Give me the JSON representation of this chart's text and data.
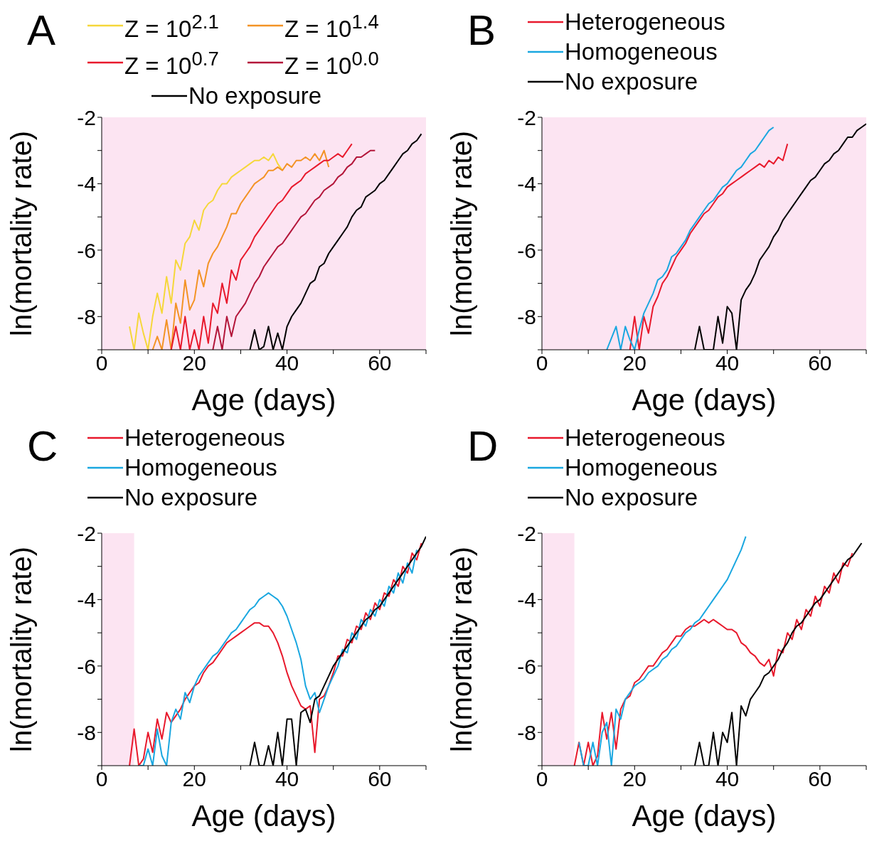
{
  "chart_data": [
    {
      "type": "line",
      "title": "A",
      "xlabel": "Age (days)",
      "ylabel": "ln(mortality rate)",
      "xlim": [
        0,
        70
      ],
      "ylim": [
        -9,
        -2
      ],
      "xticks": [
        0,
        {
          "value": 10,
          "label": null
        },
        20,
        {
          "value": 30,
          "label": null
        },
        40,
        {
          "value": 50,
          "label": null
        },
        60,
        {
          "value": 70,
          "label": null
        }
      ],
      "yticks": [
        {
          "value": -9,
          "label": null
        },
        -8,
        {
          "value": -7,
          "label": null
        },
        -6,
        {
          "value": -5,
          "label": null
        },
        -4,
        {
          "value": -3,
          "label": null
        },
        -2
      ],
      "bands": [
        {
          "axis": "x",
          "from": 0,
          "to": 70,
          "color": "#fce4f2"
        }
      ],
      "legend": "top",
      "line_style": "solid",
      "series": [
        {
          "name": "Z = 10$^{2.1}$",
          "color": "#f5d73a",
          "x": [
            6,
            7,
            8,
            9,
            10,
            11,
            12,
            13,
            14,
            15,
            16,
            17,
            18,
            19,
            20,
            21,
            22,
            23,
            24,
            25,
            26,
            27,
            28,
            29,
            30,
            31,
            32,
            33,
            34,
            35,
            36,
            37,
            38,
            39
          ],
          "values": [
            -8.3,
            -9,
            -7.9,
            -8.5,
            -9,
            -8.0,
            -7.3,
            -7.9,
            -6.8,
            -7.6,
            -6.3,
            -6.6,
            -5.8,
            -5.6,
            -5.1,
            -5.4,
            -4.8,
            -4.6,
            -4.5,
            -4.2,
            -4.0,
            -4.0,
            -3.8,
            -3.7,
            -3.6,
            -3.5,
            -3.4,
            -3.3,
            -3.3,
            -3.2,
            -3.3,
            -3.1,
            -3.4,
            -3.6
          ]
        },
        {
          "name": "Z = 10$^{1.4}$",
          "color": "#f39325",
          "x": [
            11,
            12,
            13,
            14,
            15,
            16,
            17,
            18,
            19,
            20,
            21,
            22,
            23,
            24,
            25,
            26,
            27,
            28,
            29,
            30,
            31,
            32,
            33,
            34,
            35,
            36,
            37,
            38,
            39,
            40,
            41,
            42,
            43,
            44,
            45,
            46,
            47,
            48,
            49
          ],
          "values": [
            -9,
            -8.6,
            -9,
            -8.1,
            -9,
            -7.6,
            -8.2,
            -6.9,
            -7.8,
            -7.5,
            -6.6,
            -7.1,
            -6.4,
            -6.1,
            -5.9,
            -5.6,
            -5.3,
            -4.9,
            -4.9,
            -4.6,
            -4.4,
            -4.2,
            -4.0,
            -3.9,
            -3.8,
            -3.6,
            -3.6,
            -3.5,
            -3.6,
            -3.4,
            -3.5,
            -3.3,
            -3.3,
            -3.2,
            -3.3,
            -3.1,
            -3.3,
            -3.0,
            -3.5
          ]
        },
        {
          "name": "Z = 10$^{0.7}$",
          "color": "#e8192c",
          "x": [
            15,
            16,
            17,
            18,
            19,
            20,
            21,
            22,
            23,
            24,
            25,
            26,
            27,
            28,
            29,
            30,
            31,
            32,
            33,
            34,
            35,
            36,
            37,
            38,
            39,
            40,
            41,
            42,
            43,
            44,
            45,
            46,
            47,
            48,
            49,
            50,
            51,
            52,
            53,
            54
          ],
          "values": [
            -9,
            -8.3,
            -9,
            -8.0,
            -9,
            -8.4,
            -9,
            -8.0,
            -8.8,
            -7.6,
            -7.9,
            -7.0,
            -7.6,
            -6.6,
            -6.9,
            -6.3,
            -6.1,
            -5.9,
            -5.6,
            -5.4,
            -5.2,
            -5.0,
            -4.8,
            -4.6,
            -4.5,
            -4.3,
            -4.1,
            -4.0,
            -3.9,
            -3.7,
            -3.6,
            -3.5,
            -3.4,
            -3.3,
            -3.3,
            -3.2,
            -3.1,
            -3.2,
            -3.0,
            -2.8
          ]
        },
        {
          "name": "Z = 10$^{0.0}$",
          "color": "#b3163a",
          "x": [
            24,
            25,
            26,
            27,
            28,
            29,
            30,
            31,
            32,
            33,
            34,
            35,
            36,
            37,
            38,
            39,
            40,
            41,
            42,
            43,
            44,
            45,
            46,
            47,
            48,
            49,
            50,
            51,
            52,
            53,
            54,
            55,
            56,
            57,
            58,
            59
          ],
          "values": [
            -9,
            -8.3,
            -9,
            -8.0,
            -8.6,
            -8.0,
            -7.8,
            -7.6,
            -7.3,
            -7.0,
            -6.8,
            -6.5,
            -6.3,
            -6.1,
            -5.9,
            -5.8,
            -5.6,
            -5.4,
            -5.2,
            -5.0,
            -4.9,
            -4.7,
            -4.5,
            -4.4,
            -4.2,
            -4.1,
            -4.0,
            -3.8,
            -3.7,
            -3.5,
            -3.4,
            -3.2,
            -3.2,
            -3.1,
            -3.0,
            -3.0
          ]
        },
        {
          "name": "No exposure",
          "color": "#000000",
          "x": [
            32,
            33,
            34,
            35,
            36,
            37,
            38,
            39,
            40,
            41,
            42,
            43,
            44,
            45,
            46,
            47,
            48,
            49,
            50,
            51,
            52,
            53,
            54,
            55,
            56,
            57,
            58,
            59,
            60,
            61,
            62,
            63,
            64,
            65,
            66,
            67,
            68,
            69
          ],
          "values": [
            -9,
            -8.4,
            -9,
            -8.9,
            -8.3,
            -9,
            -8.5,
            -9,
            -8.3,
            -8.0,
            -7.8,
            -7.6,
            -7.3,
            -7.0,
            -6.9,
            -6.5,
            -6.4,
            -6.1,
            -5.9,
            -5.7,
            -5.5,
            -5.3,
            -5.0,
            -4.8,
            -4.7,
            -4.4,
            -4.3,
            -4.2,
            -4.0,
            -3.9,
            -3.7,
            -3.5,
            -3.3,
            -3.1,
            -3.0,
            -2.8,
            -2.7,
            -2.5
          ]
        }
      ]
    },
    {
      "type": "line",
      "title": "B",
      "xlabel": "Age (days)",
      "ylabel": "ln(mortality rate)",
      "xlim": [
        0,
        70
      ],
      "ylim": [
        -9,
        -2
      ],
      "xticks": [
        0,
        {
          "value": 10,
          "label": null
        },
        20,
        {
          "value": 30,
          "label": null
        },
        40,
        {
          "value": 50,
          "label": null
        },
        60,
        {
          "value": 70,
          "label": null
        }
      ],
      "yticks": [
        {
          "value": -9,
          "label": null
        },
        -8,
        {
          "value": -7,
          "label": null
        },
        -6,
        {
          "value": -5,
          "label": null
        },
        -4,
        {
          "value": -3,
          "label": null
        },
        -2
      ],
      "bands": [
        {
          "axis": "x",
          "from": 0,
          "to": 70,
          "color": "#fce4f2"
        }
      ],
      "legend": "top",
      "line_style": "solid",
      "series": [
        {
          "name": "Heterogeneous",
          "color": "#e8192c",
          "x": [
            19,
            20,
            21,
            22,
            23,
            24,
            25,
            26,
            27,
            28,
            29,
            30,
            31,
            32,
            33,
            34,
            35,
            36,
            37,
            38,
            39,
            40,
            41,
            42,
            43,
            44,
            45,
            46,
            47,
            48,
            49,
            50,
            51,
            52,
            53
          ],
          "values": [
            -9,
            -8.0,
            -9,
            -8.0,
            -8.5,
            -7.7,
            -7.4,
            -7.0,
            -6.8,
            -6.5,
            -6.2,
            -6.0,
            -5.8,
            -5.5,
            -5.3,
            -5.1,
            -4.9,
            -4.8,
            -4.6,
            -4.4,
            -4.3,
            -4.1,
            -4.0,
            -3.9,
            -3.8,
            -3.7,
            -3.6,
            -3.5,
            -3.4,
            -3.5,
            -3.3,
            -3.4,
            -3.2,
            -3.3,
            -2.8
          ]
        },
        {
          "name": "Homogeneous",
          "color": "#1aa7e0",
          "x": [
            14,
            16,
            17,
            18,
            19,
            20,
            21,
            22,
            23,
            24,
            25,
            26,
            27,
            28,
            29,
            30,
            31,
            32,
            33,
            34,
            35,
            36,
            37,
            38,
            39,
            40,
            41,
            42,
            43,
            44,
            45,
            46,
            47,
            48,
            49,
            50
          ],
          "values": [
            -9,
            -8.3,
            -9,
            -8.3,
            -8.7,
            -9,
            -8.4,
            -7.9,
            -7.6,
            -7.3,
            -6.9,
            -6.8,
            -6.6,
            -6.2,
            -6.1,
            -5.9,
            -5.7,
            -5.4,
            -5.2,
            -5.0,
            -4.8,
            -4.6,
            -4.5,
            -4.3,
            -4.1,
            -4.0,
            -3.8,
            -3.6,
            -3.5,
            -3.3,
            -3.1,
            -3.0,
            -2.8,
            -2.6,
            -2.4,
            -2.3
          ]
        },
        {
          "name": "No exposure",
          "color": "#000000",
          "x": [
            33,
            34,
            35,
            37,
            38,
            39,
            40,
            41,
            42,
            43,
            44,
            45,
            46,
            47,
            48,
            49,
            50,
            51,
            52,
            53,
            54,
            55,
            56,
            57,
            58,
            59,
            60,
            61,
            62,
            63,
            64,
            65,
            66,
            67,
            68,
            69,
            70
          ],
          "values": [
            -9,
            -8.3,
            -9,
            -9,
            -8.0,
            -8.8,
            -7.7,
            -7.9,
            -9,
            -7.5,
            -7.2,
            -7.0,
            -6.7,
            -6.3,
            -6.1,
            -5.9,
            -5.6,
            -5.4,
            -5.1,
            -4.9,
            -4.7,
            -4.5,
            -4.3,
            -4.1,
            -3.9,
            -3.8,
            -3.6,
            -3.4,
            -3.3,
            -3.1,
            -3.0,
            -2.8,
            -2.6,
            -2.6,
            -2.4,
            -2.3,
            -2.2
          ]
        }
      ]
    },
    {
      "type": "line",
      "title": "C",
      "xlabel": "Age (days)",
      "ylabel": "ln(mortality rate)",
      "xlim": [
        0,
        70
      ],
      "ylim": [
        -9,
        -2
      ],
      "xticks": [
        0,
        {
          "value": 10,
          "label": null
        },
        20,
        {
          "value": 30,
          "label": null
        },
        40,
        {
          "value": 50,
          "label": null
        },
        60,
        {
          "value": 70,
          "label": null
        }
      ],
      "yticks": [
        {
          "value": -9,
          "label": null
        },
        -8,
        {
          "value": -7,
          "label": null
        },
        -6,
        {
          "value": -5,
          "label": null
        },
        -4,
        {
          "value": -3,
          "label": null
        },
        -2
      ],
      "bands": [
        {
          "axis": "x",
          "from": 0,
          "to": 7,
          "color": "#fce4f2"
        }
      ],
      "legend": "top",
      "line_style": "solid",
      "series": [
        {
          "name": "Heterogeneous",
          "color": "#e8192c",
          "x": [
            6,
            7,
            8,
            9,
            10,
            11,
            12,
            13,
            14,
            15,
            16,
            17,
            18,
            19,
            20,
            21,
            22,
            23,
            24,
            25,
            26,
            27,
            28,
            29,
            30,
            31,
            32,
            33,
            34,
            35,
            36,
            37,
            38,
            39,
            40,
            41,
            42,
            43,
            44,
            45,
            46,
            47,
            48,
            49,
            50,
            51,
            52,
            53,
            54,
            55,
            56,
            57,
            58,
            59,
            60,
            61,
            62,
            63,
            64,
            65,
            66,
            67,
            68,
            69
          ],
          "values": [
            -9,
            -7.9,
            -9,
            -8.8,
            -8.0,
            -8.6,
            -7.6,
            -8.2,
            -7.4,
            -7.7,
            -7.5,
            -7.3,
            -7.0,
            -6.8,
            -6.6,
            -6.5,
            -6.2,
            -6.0,
            -5.9,
            -5.7,
            -5.5,
            -5.3,
            -5.2,
            -5.1,
            -5.0,
            -4.9,
            -4.8,
            -4.7,
            -4.7,
            -4.8,
            -4.8,
            -5.0,
            -5.3,
            -5.7,
            -6.2,
            -6.6,
            -6.9,
            -7.2,
            -7.3,
            -7.2,
            -8.6,
            -7.0,
            -6.9,
            -6.6,
            -6.2,
            -5.7,
            -5.7,
            -5.2,
            -5.3,
            -4.8,
            -4.9,
            -4.4,
            -4.6,
            -4.1,
            -4.3,
            -3.8,
            -3.9,
            -3.4,
            -3.6,
            -3.0,
            -3.2,
            -2.6,
            -2.8,
            -2.3
          ]
        },
        {
          "name": "Homogeneous",
          "color": "#1aa7e0",
          "x": [
            8,
            9,
            10,
            11,
            12,
            13,
            14,
            15,
            16,
            17,
            18,
            19,
            20,
            21,
            22,
            23,
            24,
            25,
            26,
            27,
            28,
            29,
            30,
            31,
            32,
            33,
            34,
            35,
            36,
            37,
            38,
            39,
            40,
            41,
            42,
            43,
            44,
            45,
            46,
            47,
            48,
            49,
            50,
            51,
            52,
            53,
            54,
            55,
            56,
            57,
            58,
            59,
            60,
            61,
            62,
            63,
            64,
            65,
            66,
            67,
            68
          ],
          "values": [
            -9,
            -9,
            -8.5,
            -9,
            -7.9,
            -8.7,
            -9,
            -7.7,
            -7.3,
            -7.6,
            -6.8,
            -7.1,
            -6.6,
            -6.3,
            -6.1,
            -5.9,
            -5.7,
            -5.6,
            -5.4,
            -5.2,
            -5.0,
            -4.9,
            -4.7,
            -4.5,
            -4.3,
            -4.2,
            -4.0,
            -3.9,
            -3.8,
            -3.9,
            -4.0,
            -4.2,
            -4.5,
            -4.9,
            -5.3,
            -5.8,
            -6.6,
            -7.0,
            -6.8,
            -7.4,
            -7.0,
            -6.6,
            -6.3,
            -6.0,
            -5.5,
            -5.6,
            -5.0,
            -5.2,
            -4.6,
            -4.8,
            -4.3,
            -4.5,
            -4.0,
            -4.2,
            -3.6,
            -3.8,
            -3.2,
            -3.5,
            -2.9,
            -3.2,
            -2.5
          ]
        },
        {
          "name": "No exposure",
          "color": "#000000",
          "x": [
            32,
            33,
            34,
            35,
            36,
            37,
            38,
            39,
            40,
            41,
            42,
            43,
            44,
            45,
            46,
            47,
            48,
            49,
            50,
            51,
            52,
            53,
            54,
            55,
            56,
            57,
            58,
            59,
            60,
            61,
            62,
            63,
            64,
            65,
            66,
            67,
            68,
            69,
            70
          ],
          "values": [
            -9,
            -8.3,
            -9,
            -9,
            -8.4,
            -9,
            -8.0,
            -9,
            -7.6,
            -7.6,
            -9,
            -7.4,
            -7.3,
            -7.7,
            -7.0,
            -6.9,
            -6.6,
            -6.3,
            -6.0,
            -5.8,
            -5.6,
            -5.4,
            -5.2,
            -5.0,
            -4.8,
            -4.6,
            -4.5,
            -4.3,
            -4.2,
            -4.0,
            -3.8,
            -3.6,
            -3.4,
            -3.2,
            -3.0,
            -2.8,
            -2.6,
            -2.4,
            -2.1
          ]
        }
      ]
    },
    {
      "type": "line",
      "title": "D",
      "xlabel": "Age (days)",
      "ylabel": "ln(mortality rate)",
      "xlim": [
        0,
        70
      ],
      "ylim": [
        -9,
        -2
      ],
      "xticks": [
        0,
        {
          "value": 10,
          "label": null
        },
        20,
        {
          "value": 30,
          "label": null
        },
        40,
        {
          "value": 50,
          "label": null
        },
        60,
        {
          "value": 70,
          "label": null
        }
      ],
      "yticks": [
        {
          "value": -9,
          "label": null
        },
        -8,
        {
          "value": -7,
          "label": null
        },
        -6,
        {
          "value": -5,
          "label": null
        },
        -4,
        {
          "value": -3,
          "label": null
        },
        -2
      ],
      "bands": [
        {
          "axis": "x",
          "from": 0,
          "to": 7,
          "color": "#fce4f2"
        }
      ],
      "legend": "top",
      "line_style": "solid",
      "series": [
        {
          "name": "Heterogeneous",
          "color": "#e8192c",
          "x": [
            7,
            8,
            9,
            10,
            11,
            12,
            13,
            14,
            15,
            16,
            17,
            18,
            19,
            20,
            21,
            22,
            23,
            24,
            25,
            26,
            27,
            28,
            29,
            30,
            31,
            32,
            33,
            34,
            35,
            36,
            37,
            38,
            39,
            40,
            41,
            42,
            43,
            44,
            45,
            46,
            47,
            48,
            49,
            50,
            51,
            52,
            53,
            54,
            55,
            56,
            57,
            58,
            59,
            60,
            61,
            62,
            63,
            64,
            65,
            66,
            67
          ],
          "values": [
            -9,
            -8.3,
            -9,
            -8.3,
            -9,
            -8.7,
            -7.4,
            -8.2,
            -7.4,
            -8.5,
            -7.3,
            -7.0,
            -6.9,
            -6.5,
            -6.4,
            -6.2,
            -6.0,
            -6.0,
            -5.8,
            -5.6,
            -5.5,
            -5.3,
            -5.1,
            -5.1,
            -4.9,
            -4.8,
            -4.8,
            -4.7,
            -4.6,
            -4.7,
            -4.6,
            -4.7,
            -4.8,
            -4.9,
            -4.9,
            -5.0,
            -5.3,
            -5.4,
            -5.6,
            -5.7,
            -5.9,
            -6.0,
            -5.8,
            -6.3,
            -5.5,
            -5.6,
            -5.0,
            -5.2,
            -4.6,
            -4.9,
            -4.3,
            -4.5,
            -3.9,
            -4.2,
            -3.6,
            -3.8,
            -3.2,
            -3.5,
            -2.9,
            -3.0,
            -2.6
          ]
        },
        {
          "name": "Homogeneous",
          "color": "#1aa7e0",
          "x": [
            8,
            9,
            10,
            11,
            12,
            13,
            14,
            15,
            16,
            17,
            18,
            19,
            20,
            21,
            22,
            23,
            24,
            25,
            26,
            27,
            28,
            29,
            30,
            31,
            32,
            33,
            34,
            35,
            36,
            37,
            38,
            39,
            40,
            41,
            42,
            43,
            44
          ],
          "values": [
            -8.3,
            -9,
            -9,
            -8.3,
            -9,
            -8.0,
            -7.7,
            -9,
            -7.3,
            -7.6,
            -7.0,
            -6.8,
            -6.6,
            -6.5,
            -6.4,
            -6.2,
            -6.1,
            -6.0,
            -5.8,
            -5.7,
            -5.5,
            -5.4,
            -5.2,
            -5.0,
            -4.9,
            -4.7,
            -4.6,
            -4.4,
            -4.2,
            -4.0,
            -3.8,
            -3.6,
            -3.4,
            -3.1,
            -2.8,
            -2.5,
            -2.1
          ]
        },
        {
          "name": "No exposure",
          "color": "#000000",
          "x": [
            33,
            34,
            35,
            36,
            37,
            38,
            39,
            40,
            41,
            42,
            43,
            44,
            45,
            46,
            47,
            48,
            49,
            50,
            51,
            52,
            53,
            54,
            55,
            56,
            57,
            58,
            59,
            60,
            61,
            62,
            63,
            64,
            65,
            66,
            67,
            68,
            69
          ],
          "values": [
            -9,
            -8.3,
            -9,
            -9,
            -8.0,
            -9,
            -8.0,
            -8.3,
            -7.4,
            -9,
            -7.2,
            -7.5,
            -7.0,
            -6.8,
            -6.6,
            -6.3,
            -6.2,
            -6.0,
            -5.8,
            -5.5,
            -5.3,
            -5.0,
            -4.8,
            -4.7,
            -4.5,
            -4.3,
            -4.1,
            -4.0,
            -3.8,
            -3.6,
            -3.4,
            -3.2,
            -3.0,
            -2.8,
            -2.7,
            -2.5,
            -2.3
          ]
        }
      ]
    }
  ]
}
